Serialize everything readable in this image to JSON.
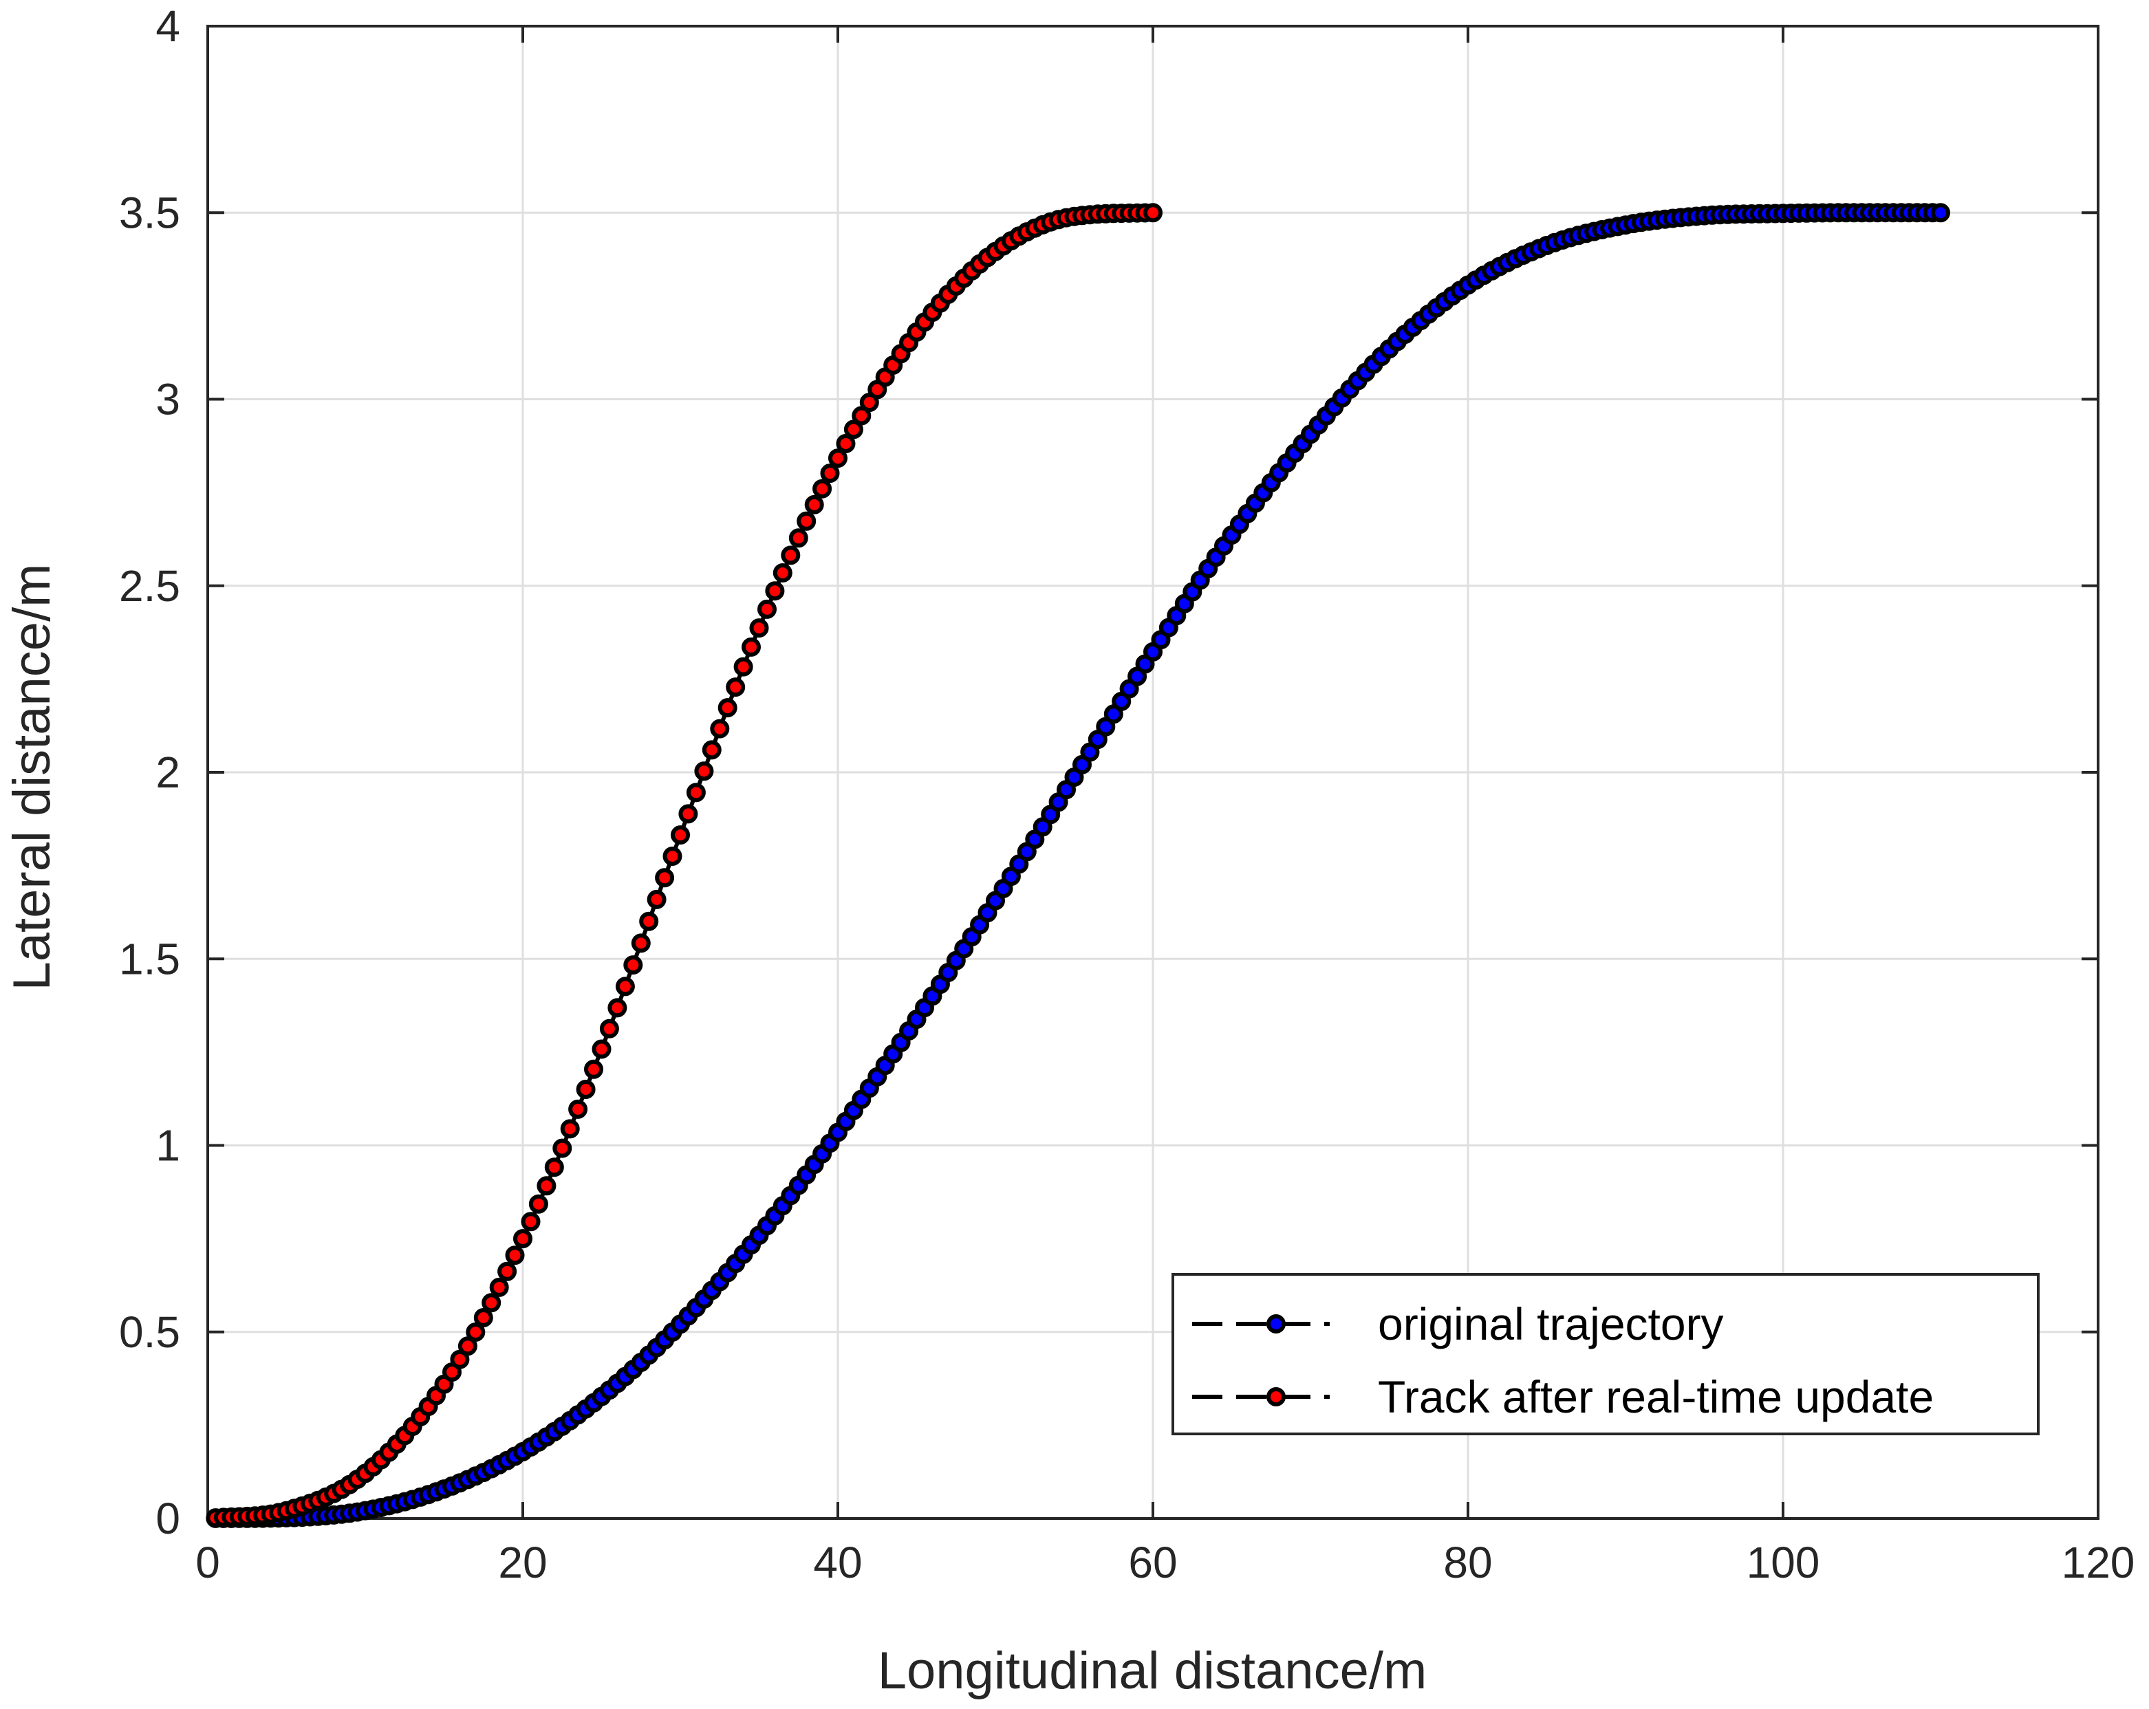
{
  "chart_data": {
    "type": "line",
    "title": "",
    "xlabel": "Longitudinal distance/m",
    "ylabel": "Lateral distance/m",
    "xlim": [
      0,
      120
    ],
    "ylim": [
      0,
      4
    ],
    "xticks": [
      0,
      20,
      40,
      60,
      80,
      100,
      120
    ],
    "yticks": [
      0,
      0.5,
      1,
      1.5,
      2,
      2.5,
      3,
      3.5,
      4
    ],
    "xtick_labels": [
      "0",
      "20",
      "40",
      "60",
      "80",
      "100",
      "120"
    ],
    "ytick_labels": [
      "0",
      "0.5",
      "1",
      "1.5",
      "2",
      "2.5",
      "3",
      "3.5",
      "4"
    ],
    "grid": true,
    "legend_position": "bottom-right",
    "line_style": "dashed with circle markers",
    "series": [
      {
        "name": "original trajectory",
        "color": "#0000ff",
        "edge_color": "#000000",
        "x": [
          0,
          5,
          10,
          15,
          20,
          25,
          30,
          35,
          40,
          45,
          50,
          55,
          60,
          65,
          70,
          75,
          80,
          85,
          90,
          95,
          100,
          105,
          110
        ],
        "y": [
          0,
          0.002,
          0.021,
          0.079,
          0.179,
          0.327,
          0.521,
          0.759,
          1.035,
          1.338,
          1.656,
          1.987,
          2.323,
          2.636,
          2.906,
          3.135,
          3.306,
          3.412,
          3.467,
          3.492,
          3.498,
          3.5,
          3.5
        ]
      },
      {
        "name": "Track after real-time update",
        "color": "#ff0000",
        "edge_color": "#000000",
        "x": [
          0,
          5,
          10,
          15,
          20,
          25,
          30,
          35,
          40,
          45,
          50,
          55,
          60
        ],
        "y": [
          0,
          0.021,
          0.121,
          0.36,
          0.75,
          1.258,
          1.832,
          2.387,
          2.842,
          3.18,
          3.396,
          3.49,
          3.5
        ]
      }
    ]
  }
}
